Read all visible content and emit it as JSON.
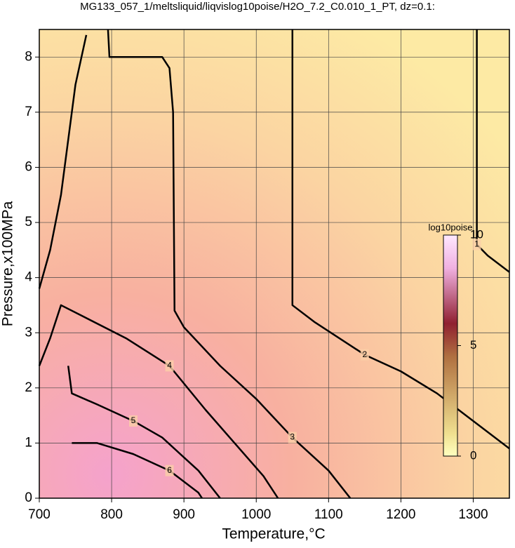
{
  "chart_data": {
    "type": "contour",
    "title": "MG133_057_1/meltsliquid/liqvislog10poise/H2O_7.2_C0.010_1_PT, dz=0.1:",
    "x_label": "Temperature,°C",
    "y_label": "Pressure,x100MPa",
    "xlim": [
      700,
      1350
    ],
    "ylim": [
      0,
      8.5
    ],
    "xticks": [
      700,
      800,
      900,
      1000,
      1100,
      1200,
      1300
    ],
    "yticks": [
      0,
      1,
      2,
      3,
      4,
      5,
      6,
      7,
      8
    ],
    "grid": true,
    "line_color": "#000000",
    "contours": [
      {
        "level": 1,
        "T": [
          1305,
          1305,
          1305,
          1320,
          1350
        ],
        "P": [
          8.5,
          6.0,
          4.6,
          4.4,
          4.1
        ]
      },
      {
        "level": 2,
        "T": [
          1050,
          1050,
          1050,
          1080,
          1150,
          1200,
          1250,
          1300,
          1350
        ],
        "P": [
          8.5,
          5.1,
          3.5,
          3.2,
          2.6,
          2.3,
          1.9,
          1.4,
          0.9
        ]
      },
      {
        "level": 3,
        "T": [
          795,
          797,
          870,
          880,
          885,
          887,
          900,
          950,
          1000,
          1050,
          1100,
          1130,
          null,
          765,
          750,
          740,
          730,
          715,
          700
        ],
        "P": [
          8.5,
          8.0,
          8.0,
          7.8,
          7.0,
          3.4,
          3.1,
          2.4,
          1.8,
          1.1,
          0.5,
          0,
          null,
          8.4,
          7.5,
          6.5,
          5.5,
          4.5,
          3.8
        ]
      },
      {
        "level": 4,
        "T": [
          700,
          715,
          730,
          760,
          820,
          880,
          930,
          970,
          1010,
          1030
        ],
        "P": [
          2.4,
          2.9,
          3.5,
          3.3,
          2.9,
          2.4,
          1.6,
          1.0,
          0.4,
          0
        ]
      },
      {
        "level": 5,
        "T": [
          740,
          745,
          780,
          830,
          870,
          920,
          950
        ],
        "P": [
          2.4,
          1.9,
          1.7,
          1.4,
          1.1,
          0.5,
          0
        ]
      },
      {
        "level": 6,
        "T": [
          745,
          780,
          830,
          880,
          920,
          925
        ],
        "P": [
          1.0,
          1.0,
          0.8,
          0.5,
          0.1,
          0
        ]
      }
    ],
    "colorbar": {
      "label": "log10poise",
      "lim": [
        0,
        10
      ],
      "ticks": [
        0,
        5,
        10
      ]
    }
  }
}
